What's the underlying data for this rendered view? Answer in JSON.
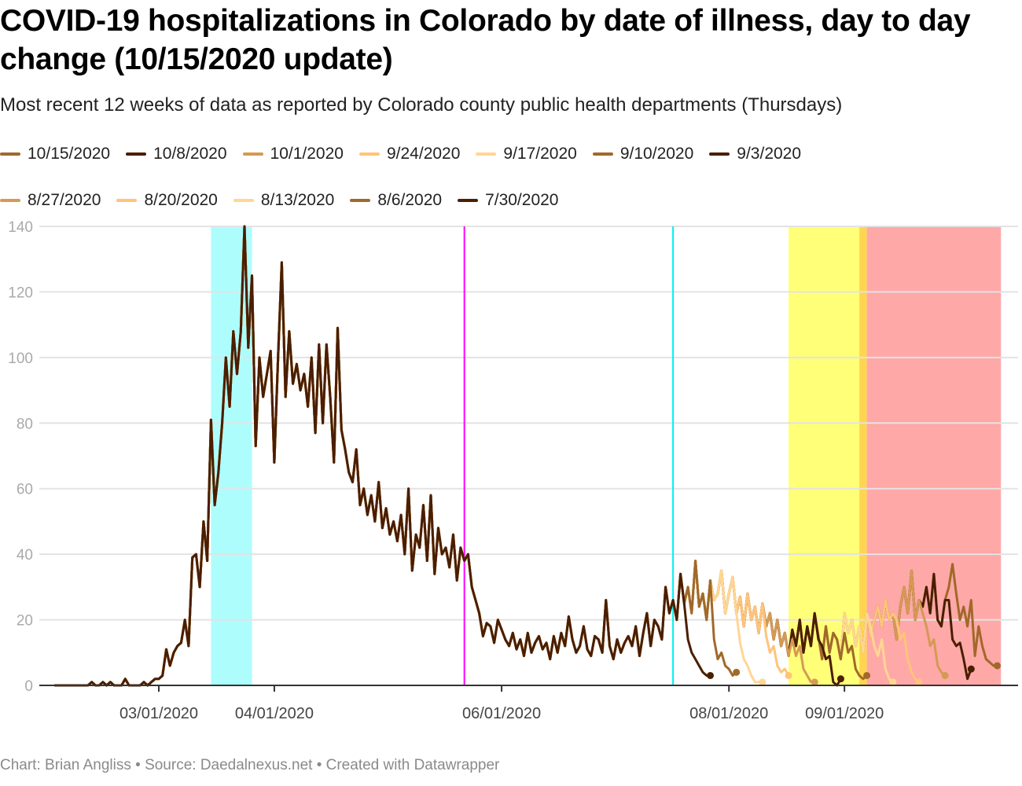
{
  "title": "COVID-19 hospitalizations in Colorado by date of illness, day to day change (10/15/2020 update)",
  "subtitle": "Most recent 12 weeks of data as reported by Colorado county public health departments (Thursdays)",
  "footer": "Chart: Brian Angliss • Source: Daedalnexus.net • Created with Datawrapper",
  "chart_data": {
    "type": "line",
    "x_start": "2020-02-02",
    "xlim": [
      "2020-02-01",
      "2020-10-14"
    ],
    "ylim": [
      0,
      140
    ],
    "y_ticks": [
      0,
      20,
      40,
      60,
      80,
      100,
      120,
      140
    ],
    "x_ticks": [
      {
        "date": "2020-03-01",
        "label": "03/01/2020"
      },
      {
        "date": "2020-04-01",
        "label": "04/01/2020"
      },
      {
        "date": "2020-06-01",
        "label": "06/01/2020"
      },
      {
        "date": "2020-08-01",
        "label": "08/01/2020"
      },
      {
        "date": "2020-09-01",
        "label": "09/01/2020"
      }
    ],
    "grid": "horizontal",
    "legend_placement": "top",
    "base_values": [
      0,
      0,
      0,
      0,
      0,
      0,
      0,
      0,
      0,
      0,
      1,
      0,
      0,
      1,
      0,
      1,
      0,
      0,
      0,
      2,
      0,
      0,
      0,
      0,
      1,
      0,
      1,
      2,
      2,
      3,
      11,
      6,
      10,
      12,
      13,
      20,
      12,
      39,
      40,
      30,
      50,
      38,
      81,
      55,
      65,
      80,
      100,
      85,
      108,
      95,
      108,
      140,
      103,
      125,
      73,
      100,
      88,
      95,
      102,
      68,
      100,
      129,
      88,
      108,
      92,
      98,
      90,
      95,
      85,
      100,
      77,
      104,
      80,
      104,
      88,
      68,
      109,
      78,
      72,
      65,
      62,
      72,
      55,
      60,
      52,
      58,
      50,
      62,
      48,
      54,
      46,
      50,
      44,
      52,
      40,
      60,
      35,
      46,
      42,
      55,
      38,
      58,
      34,
      48,
      40,
      42,
      36,
      46,
      32,
      42,
      38,
      40,
      30,
      26,
      22,
      15,
      19,
      18,
      13,
      20,
      17,
      14,
      12,
      16,
      11,
      14,
      9,
      16,
      10,
      13,
      15,
      11,
      13,
      8,
      15,
      10,
      16,
      12,
      21,
      14,
      10,
      12,
      18,
      11,
      9,
      15,
      14,
      10,
      26,
      12,
      8,
      14,
      10,
      13,
      15,
      12,
      18,
      9,
      16,
      22,
      12,
      20,
      18,
      14,
      30,
      22,
      26,
      20,
      34,
      25,
      30,
      22,
      38,
      24,
      28,
      20,
      32,
      26,
      28,
      35,
      22,
      28,
      33,
      22,
      27,
      18,
      28,
      20,
      24,
      16,
      25,
      18,
      22,
      14,
      20,
      12,
      16,
      9,
      17,
      12,
      20,
      10,
      18,
      12,
      22,
      15,
      8,
      18,
      10,
      16,
      14,
      8,
      22,
      16,
      20,
      12,
      18,
      10,
      22,
      15,
      20,
      24,
      18,
      26,
      20,
      22,
      14,
      24,
      30,
      22,
      35,
      20,
      26,
      24,
      30,
      22,
      34,
      20,
      18,
      26,
      30,
      37,
      28,
      20,
      24,
      18,
      26,
      26,
      24,
      9,
      18,
      12,
      8,
      7,
      6,
      6
    ],
    "series": [
      {
        "name": "10/15/2020",
        "color": "#a0692a",
        "last_date": "2020-10-12",
        "tail": [
          9,
          18,
          12,
          8,
          7,
          6,
          6
        ]
      },
      {
        "name": "10/8/2020",
        "color": "#4a1e00",
        "last_date": "2020-10-05",
        "tail": [
          26,
          14,
          12,
          13,
          8,
          2,
          5
        ]
      },
      {
        "name": "10/1/2020",
        "color": "#d49a55",
        "last_date": "2020-09-28",
        "tail": [
          22,
          18,
          12,
          14,
          6,
          4,
          3
        ]
      },
      {
        "name": "9/24/2020",
        "color": "#ffc47a",
        "last_date": "2020-09-21",
        "tail": [
          20,
          14,
          16,
          8,
          4,
          2,
          1
        ]
      },
      {
        "name": "9/17/2020",
        "color": "#ffd693",
        "last_date": "2020-09-14",
        "tail": [
          18,
          12,
          9,
          14,
          5,
          2,
          1
        ]
      },
      {
        "name": "9/10/2020",
        "color": "#a0692a",
        "last_date": "2020-09-07",
        "tail": [
          16,
          10,
          12,
          5,
          3,
          2,
          3
        ]
      },
      {
        "name": "9/3/2020",
        "color": "#4a1e00",
        "last_date": "2020-08-31",
        "tail": [
          14,
          12,
          8,
          9,
          1,
          0,
          2
        ]
      },
      {
        "name": "8/27/2020",
        "color": "#d49a55",
        "last_date": "2020-08-24",
        "tail": [
          14,
          9,
          12,
          5,
          3,
          1,
          1
        ]
      },
      {
        "name": "8/20/2020",
        "color": "#ffc47a",
        "last_date": "2020-08-17",
        "tail": [
          15,
          10,
          12,
          6,
          4,
          5,
          3
        ]
      },
      {
        "name": "8/13/2020",
        "color": "#ffd693",
        "last_date": "2020-08-10",
        "tail": [
          13,
          8,
          6,
          3,
          1,
          1,
          1
        ]
      },
      {
        "name": "8/6/2020",
        "color": "#a0692a",
        "last_date": "2020-08-03",
        "tail": [
          14,
          8,
          10,
          6,
          5,
          3,
          4
        ]
      },
      {
        "name": "7/30/2020",
        "color": "#4a1e00",
        "last_date": "2020-07-27",
        "tail": [
          14,
          10,
          8,
          6,
          4,
          3,
          3
        ]
      }
    ],
    "bands": [
      {
        "from": "2020-03-15",
        "to": "2020-03-26",
        "color": "#aefdfd"
      },
      {
        "from": "2020-08-17",
        "to": "2020-09-05",
        "color": "#ffff78"
      },
      {
        "from": "2020-09-05",
        "to": "2020-09-07",
        "color": "#ffd54f"
      },
      {
        "from": "2020-09-07",
        "to": "2020-10-13",
        "color": "#ffa8a8"
      }
    ],
    "vertical_lines": [
      {
        "date": "2020-05-22",
        "color": "#ff00ff"
      },
      {
        "date": "2020-07-17",
        "color": "#00f0f0"
      }
    ]
  }
}
